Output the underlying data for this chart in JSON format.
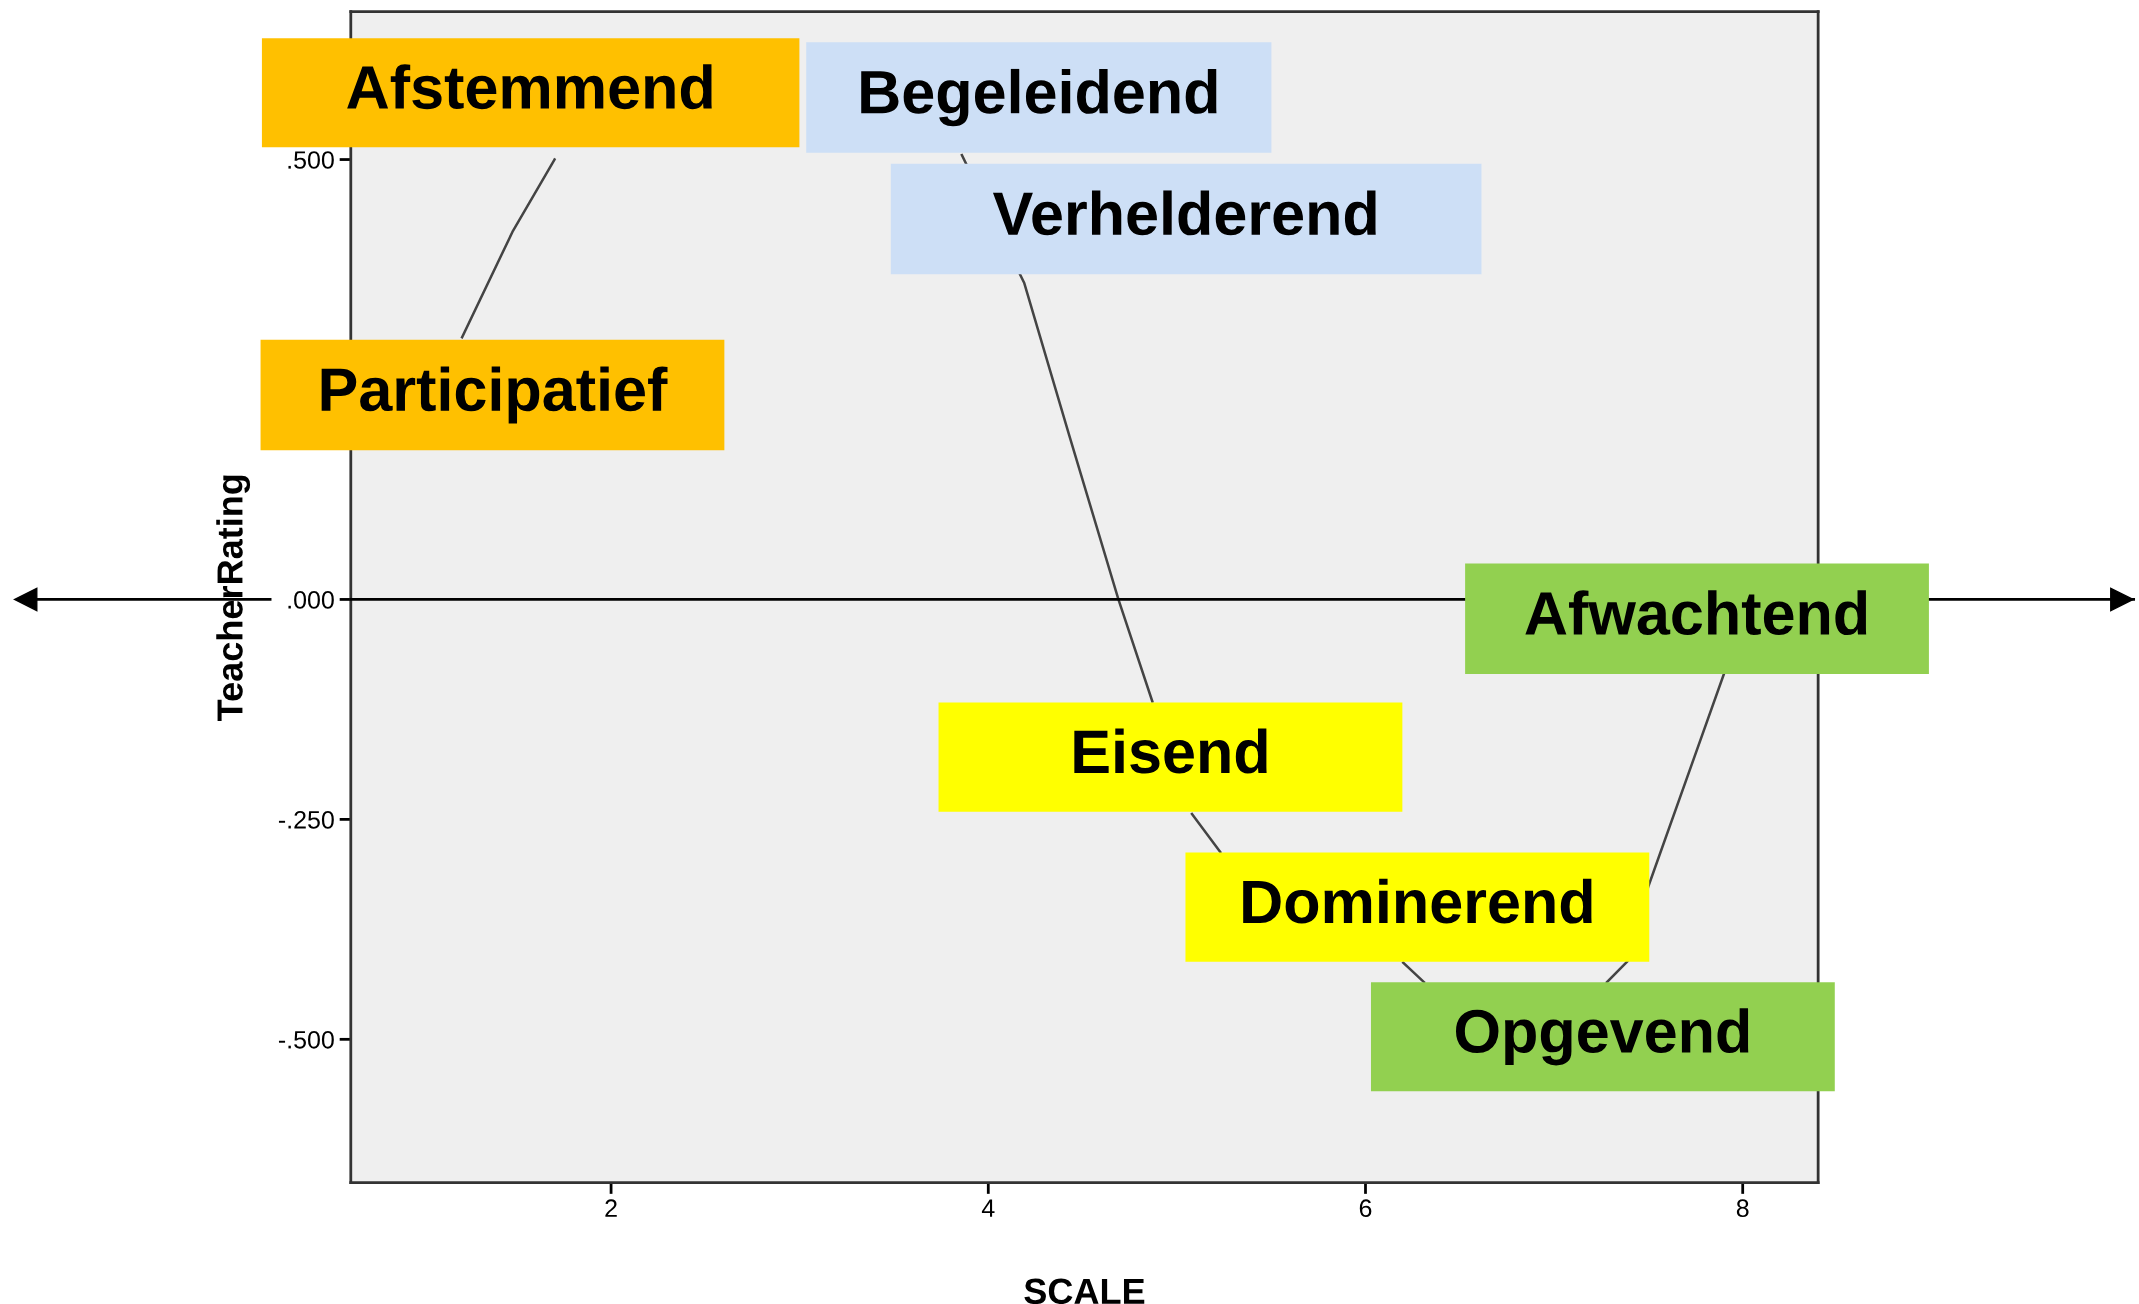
{
  "chart_data": {
    "type": "line",
    "xlabel": "SCALE",
    "ylabel": "TeacherRating",
    "x": [
      1.21,
      1.48,
      1.7,
      2.8,
      3.86,
      4.19,
      4.43,
      4.69,
      4.87,
      4.97,
      5.08,
      5.23,
      5.7,
      6.2,
      6.31,
      6.8,
      7.28,
      7.39,
      7.5,
      7.9
    ],
    "series": [
      {
        "color": "#444444",
        "values": [
          0.298,
          0.419,
          0.5,
          null,
          0.505,
          0.36,
          0.186,
          0.0,
          -0.116,
          null,
          -0.244,
          -0.287,
          null,
          -0.413,
          -0.435,
          null,
          -0.435,
          -0.411,
          -0.326,
          -0.085
        ]
      }
    ],
    "xlim": [
      0.62,
      8.4
    ],
    "xticks": [
      2,
      4,
      6,
      8
    ],
    "ylim": [
      -0.663,
      0.668
    ],
    "yticks": [
      {
        "value": 0.5,
        "label": ".500"
      },
      {
        "value": 0.0,
        "label": ".000"
      },
      {
        "value": -0.25,
        "label": "-.250"
      },
      {
        "value": -0.5,
        "label": "-.500"
      }
    ],
    "ref_lines": [
      {
        "axis": "y",
        "value": 0.0,
        "color": "#000000"
      }
    ],
    "grid": false,
    "legend": false,
    "annotations": [
      "Afstemmend",
      "Begeleidend",
      "Verhelderend",
      "Participatief",
      "Afwachtend",
      "Eisend",
      "Dominerend",
      "Opgevend"
    ]
  }
}
